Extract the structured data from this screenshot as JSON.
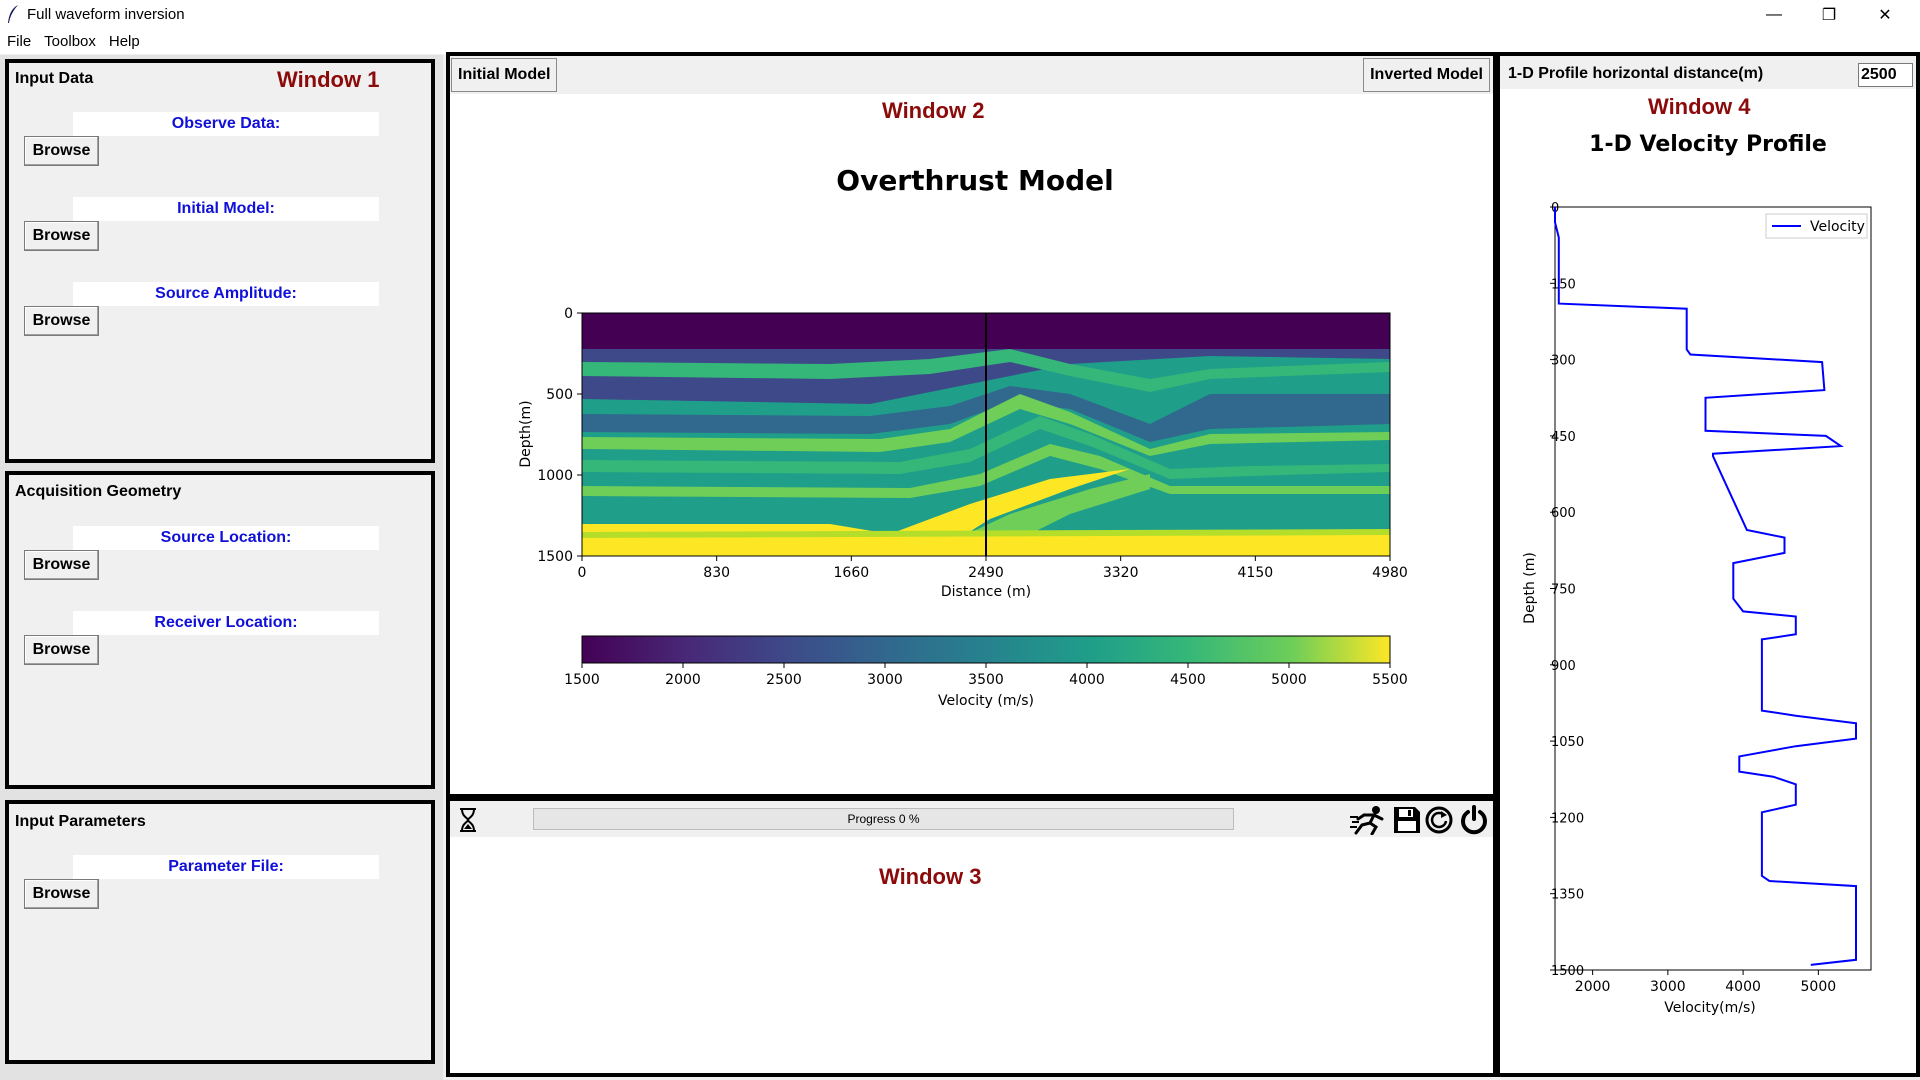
{
  "app": {
    "title": "Full waveform inversion"
  },
  "window_controls": {
    "minimize": "—",
    "restore": "❐",
    "close": "✕"
  },
  "menu": [
    "File",
    "Toolbox",
    "Help"
  ],
  "window1": {
    "label": "Window 1",
    "input_data": {
      "title": "Input Data",
      "fields": [
        {
          "label": "Observe Data:",
          "button": "Browse"
        },
        {
          "label": "Initial Model:",
          "button": "Browse"
        },
        {
          "label": "Source Amplitude:",
          "button": "Browse"
        }
      ]
    },
    "acquisition": {
      "title": "Acquisition Geometry",
      "fields": [
        {
          "label": "Source Location:",
          "button": "Browse"
        },
        {
          "label": "Receiver Location:",
          "button": "Browse"
        }
      ]
    },
    "parameters": {
      "title": "Input Parameters",
      "fields": [
        {
          "label": "Parameter File:",
          "button": "Browse"
        }
      ]
    }
  },
  "window2": {
    "label": "Window 2",
    "tab_initial": "Initial Model",
    "tab_inverted": "Inverted Model",
    "chart_data": {
      "type": "heatmap",
      "title": "Overthrust Model",
      "xlabel": "Distance (m)",
      "ylabel": "Depth(m)",
      "x_ticks": [
        "0",
        "830",
        "1660",
        "2490",
        "3320",
        "4150",
        "4980"
      ],
      "y_ticks": [
        "0",
        "500",
        "1000",
        "1500"
      ],
      "xlim": [
        0,
        4980
      ],
      "ylim": [
        0,
        1500
      ],
      "profile_line_x": 2490,
      "colorbar": {
        "label": "Velocity (m/s)",
        "ticks": [
          "1500",
          "2000",
          "2500",
          "3000",
          "3500",
          "4000",
          "4500",
          "5000",
          "5500"
        ],
        "range": [
          1500,
          5500
        ],
        "colormap": "viridis"
      }
    }
  },
  "window3": {
    "label": "Window 3",
    "progress_text": "Progress 0 %",
    "progress_value": 0,
    "toolbar_icons": [
      "hourglass-icon",
      "run-icon",
      "save-icon",
      "reset-icon",
      "power-icon"
    ]
  },
  "window4": {
    "header_label": "1-D Profile horizontal distance(m)",
    "distance_value": "2500",
    "label": "Window 4",
    "chart_data": {
      "type": "line",
      "title": "1-D Velocity Profile",
      "xlabel": "Velocity(m/s)",
      "ylabel": "Depth (m)",
      "x_ticks": [
        "2000",
        "3000",
        "4000",
        "5000"
      ],
      "y_ticks": [
        "0",
        "150",
        "300",
        "450",
        "600",
        "750",
        "900",
        "1050",
        "1200",
        "1350",
        "1500"
      ],
      "xlim": [
        1500,
        5700
      ],
      "ylim": [
        0,
        1500
      ],
      "legend": [
        "Velocity"
      ],
      "legend_position": "top-right",
      "series": [
        {
          "name": "Velocity",
          "color": "#0000ff",
          "points": [
            [
              1500,
              0
            ],
            [
              1500,
              30
            ],
            [
              1550,
              60
            ],
            [
              1550,
              190
            ],
            [
              3250,
              200
            ],
            [
              3250,
              280
            ],
            [
              3300,
              290
            ],
            [
              5050,
              305
            ],
            [
              5080,
              360
            ],
            [
              3500,
              375
            ],
            [
              3500,
              440
            ],
            [
              5100,
              450
            ],
            [
              5300,
              470
            ],
            [
              3600,
              485
            ],
            [
              3600,
              490
            ],
            [
              4050,
              635
            ],
            [
              4550,
              650
            ],
            [
              4550,
              680
            ],
            [
              3870,
              700
            ],
            [
              3870,
              770
            ],
            [
              4000,
              795
            ],
            [
              4700,
              805
            ],
            [
              4700,
              840
            ],
            [
              4250,
              850
            ],
            [
              4250,
              990
            ],
            [
              4700,
              1000
            ],
            [
              5500,
              1015
            ],
            [
              5500,
              1045
            ],
            [
              4700,
              1060
            ],
            [
              3950,
              1080
            ],
            [
              3950,
              1110
            ],
            [
              4400,
              1120
            ],
            [
              4700,
              1135
            ],
            [
              4700,
              1175
            ],
            [
              4250,
              1190
            ],
            [
              4250,
              1315
            ],
            [
              4350,
              1325
            ],
            [
              5500,
              1335
            ],
            [
              5500,
              1480
            ],
            [
              4900,
              1490
            ]
          ]
        }
      ]
    }
  }
}
